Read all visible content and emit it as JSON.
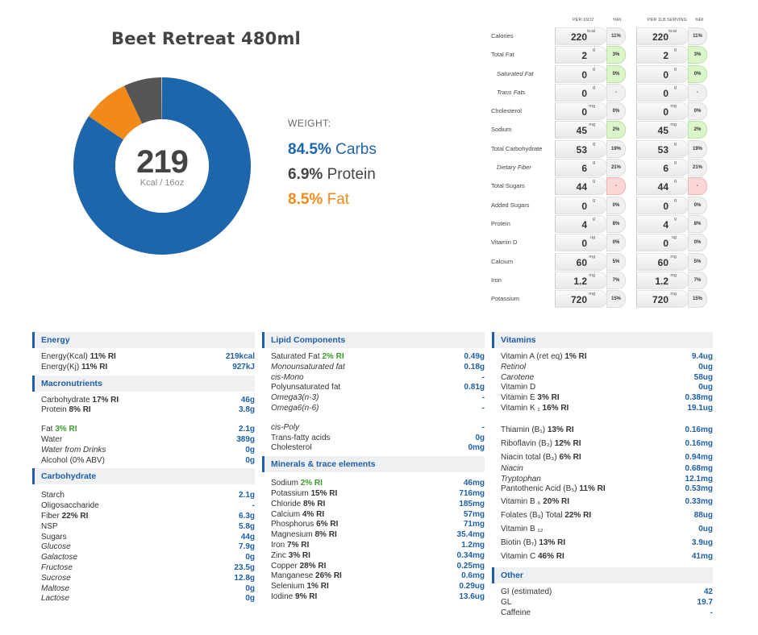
{
  "title": "Beet Retreat 480ml",
  "summary": {
    "kcal": "219",
    "kcal_unit": "Kcal / 16oz",
    "weight_label": "WEIGHT:",
    "carbs_pct": "84.5%",
    "carbs_label": "Carbs",
    "protein_pct": "6.9%",
    "protein_label": "Protein",
    "fat_pct": "8.5%",
    "fat_label": "Fat",
    "colors": {
      "carbs": "#1e66ab",
      "protein": "#555555",
      "fat": "#f28a1a"
    }
  },
  "donut": {
    "segments": [
      {
        "name": "carbs",
        "fraction": 0.845,
        "color": "#1e66ab"
      },
      {
        "name": "fat",
        "fraction": 0.085,
        "color": "#f28a1a"
      },
      {
        "name": "protein",
        "fraction": 0.069,
        "color": "#555555"
      }
    ]
  },
  "nutrition_table": {
    "header_per16": "PER 16OZ",
    "header_ri": "%RI",
    "header_per1lb": "PER 1LB SERVING",
    "header_ri2": "%RI",
    "rows": [
      {
        "label": "Calories",
        "sub": false,
        "v1": "220",
        "u1": "kcal",
        "ri1": "11%",
        "v2": "220",
        "u2": "kcal",
        "ri2": "11%",
        "state": "none"
      },
      {
        "label": "Total Fat",
        "sub": false,
        "v1": "2",
        "u1": "g",
        "ri1": "3%",
        "v2": "2",
        "u2": "g",
        "ri2": "3%",
        "state": "green"
      },
      {
        "label": "Saturated Fat",
        "sub": true,
        "v1": "0",
        "u1": "g",
        "ri1": "0%",
        "v2": "0",
        "u2": "g",
        "ri2": "0%",
        "state": "green"
      },
      {
        "label": "Trans Fats",
        "sub": true,
        "v1": "0",
        "u1": "g",
        "ri1": "-",
        "v2": "0",
        "u2": "g",
        "ri2": "-",
        "state": "none"
      },
      {
        "label": "Cholesterol",
        "sub": false,
        "v1": "0",
        "u1": "mg",
        "ri1": "0%",
        "v2": "0",
        "u2": "mg",
        "ri2": "0%",
        "state": "none"
      },
      {
        "label": "Sodium",
        "sub": false,
        "v1": "45",
        "u1": "mg",
        "ri1": "2%",
        "v2": "45",
        "u2": "mg",
        "ri2": "2%",
        "state": "green"
      },
      {
        "label": "Total Carbohydrate",
        "sub": false,
        "v1": "53",
        "u1": "g",
        "ri1": "19%",
        "v2": "53",
        "u2": "g",
        "ri2": "19%",
        "state": "none"
      },
      {
        "label": "Dietary Fiber",
        "sub": true,
        "v1": "6",
        "u1": "g",
        "ri1": "21%",
        "v2": "6",
        "u2": "g",
        "ri2": "21%",
        "state": "none"
      },
      {
        "label": "Total Sugars",
        "sub": false,
        "v1": "44",
        "u1": "g",
        "ri1": "-",
        "v2": "44",
        "u2": "g",
        "ri2": "-",
        "state": "red"
      },
      {
        "label": "Added Sugars",
        "sub": false,
        "v1": "0",
        "u1": "g",
        "ri1": "0%",
        "v2": "0",
        "u2": "g",
        "ri2": "0%",
        "state": "none"
      },
      {
        "label": "Protein",
        "sub": false,
        "v1": "4",
        "u1": "g",
        "ri1": "8%",
        "v2": "4",
        "u2": "g",
        "ri2": "8%",
        "state": "none"
      },
      {
        "label": "Vitamin D",
        "sub": false,
        "v1": "0",
        "u1": "ug",
        "ri1": "0%",
        "v2": "0",
        "u2": "ug",
        "ri2": "0%",
        "state": "none"
      },
      {
        "label": "Calcium",
        "sub": false,
        "v1": "60",
        "u1": "mg",
        "ri1": "5%",
        "v2": "60",
        "u2": "mg",
        "ri2": "5%",
        "state": "none"
      },
      {
        "label": "Iron",
        "sub": false,
        "v1": "1.2",
        "u1": "mg",
        "ri1": "7%",
        "v2": "1.2",
        "u2": "mg",
        "ri2": "7%",
        "state": "none"
      },
      {
        "label": "Potassium",
        "sub": false,
        "v1": "720",
        "u1": "mg",
        "ri1": "15%",
        "v2": "720",
        "u2": "mg",
        "ri2": "15%",
        "state": "none"
      }
    ]
  },
  "panels": [
    {
      "left": 40,
      "width": 276,
      "blocks": [
        {
          "type": "header",
          "text": "Energy"
        },
        {
          "type": "gap",
          "h": 5
        },
        {
          "type": "row",
          "name": "Energy(Kcal)",
          "ri": "11% RI",
          "value": "219kcal"
        },
        {
          "type": "row",
          "name": "Energy(Kj)",
          "ri": "11% RI",
          "value": "927kJ"
        },
        {
          "type": "gap",
          "h": 3
        },
        {
          "type": "header",
          "text": "Macronutrients"
        },
        {
          "type": "gap",
          "h": 5
        },
        {
          "type": "row",
          "name": "Carbohydrate",
          "ri": "17% RI",
          "value": "46g"
        },
        {
          "type": "row",
          "name": "Protein",
          "ri": "8% RI",
          "value": "3.8g"
        },
        {
          "type": "gap",
          "h": 11
        },
        {
          "type": "row",
          "name": "Fat",
          "ri": "3% RI",
          "ri_green": true,
          "value": "2.1g"
        },
        {
          "type": "row",
          "name": "Water",
          "value": "389g"
        },
        {
          "type": "row",
          "name": "Water from Drinks",
          "italic": true,
          "value": "0g"
        },
        {
          "type": "row",
          "name": "Alcohol (0% ABV)",
          "value": "0g"
        },
        {
          "type": "gap",
          "h": 3
        },
        {
          "type": "header",
          "text": "Carbohydrate"
        },
        {
          "type": "gap",
          "h": 8
        },
        {
          "type": "row",
          "name": "Starch",
          "value": "2.1g"
        },
        {
          "type": "row",
          "name": "Oligosaccharide",
          "value": "-"
        },
        {
          "type": "row",
          "name": "Fiber",
          "ri": "22% RI",
          "value": "6.3g"
        },
        {
          "type": "row",
          "name": "NSP",
          "value": "5.8g"
        },
        {
          "type": "row",
          "name": "Sugars",
          "value": "44g"
        },
        {
          "type": "row",
          "name": "Glucose",
          "italic": true,
          "value": "7.9g"
        },
        {
          "type": "row",
          "name": "Galactose",
          "italic": true,
          "value": "0g"
        },
        {
          "type": "row",
          "name": "Fructose",
          "italic": true,
          "value": "23.5g"
        },
        {
          "type": "row",
          "name": "Sucrose",
          "italic": true,
          "value": "12.8g"
        },
        {
          "type": "row",
          "name": "Maltose",
          "italic": true,
          "value": "0g"
        },
        {
          "type": "row",
          "name": "Lactose",
          "italic": true,
          "value": "0g"
        }
      ]
    },
    {
      "left": 325,
      "width": 276,
      "blocks": [
        {
          "type": "header",
          "text": "Lipid Components"
        },
        {
          "type": "gap",
          "h": 5
        },
        {
          "type": "row",
          "name": "Saturated Fat",
          "ri": "2% RI",
          "ri_green": true,
          "value": "0.49g"
        },
        {
          "type": "row",
          "name": "Monounsaturated fat",
          "italic": true,
          "value": "0.18g"
        },
        {
          "type": "row",
          "name": "cis-Mono",
          "italic": true,
          "value": "-"
        },
        {
          "type": "row",
          "name": "Polyunsaturated fat",
          "value": "0.81g"
        },
        {
          "type": "row",
          "name": "Omega3(n-3)",
          "italic": true,
          "value": "-"
        },
        {
          "type": "row",
          "name": "Omega6(n-6)",
          "italic": true,
          "value": "-"
        },
        {
          "type": "gap",
          "h": 11
        },
        {
          "type": "row",
          "name": "cis-Poly",
          "italic": true,
          "value": "-"
        },
        {
          "type": "row",
          "name": "Trans-fatty acids",
          "value": "0g"
        },
        {
          "type": "row",
          "name": "Cholesterol",
          "value": "0mg"
        },
        {
          "type": "gap",
          "h": 3
        },
        {
          "type": "header",
          "text": "Minerals & trace elements"
        },
        {
          "type": "gap",
          "h": 8
        },
        {
          "type": "row",
          "name": "Sodium",
          "ri": "2% RI",
          "ri_green": true,
          "value": "46mg"
        },
        {
          "type": "row",
          "name": "Potassium",
          "ri": "15% RI",
          "value": "716mg"
        },
        {
          "type": "row",
          "name": "Chloride",
          "ri": "8% RI",
          "value": "185mg"
        },
        {
          "type": "row",
          "name": "Calcium",
          "ri": "4% RI",
          "value": "57mg"
        },
        {
          "type": "row",
          "name": "Phosphorus",
          "ri": "6% RI",
          "value": "71mg"
        },
        {
          "type": "row",
          "name": "Magnesium",
          "ri": "8% RI",
          "value": "35.4mg"
        },
        {
          "type": "row",
          "name": "Iron",
          "ri": "7% RI",
          "value": "1.2mg"
        },
        {
          "type": "row",
          "name": "Zinc",
          "ri": "3% RI",
          "value": "0.34mg"
        },
        {
          "type": "row",
          "name": "Copper",
          "ri": "28% RI",
          "value": "0.25mg"
        },
        {
          "type": "row",
          "name": "Manganese",
          "ri": "26% RI",
          "value": "0.6mg"
        },
        {
          "type": "row",
          "name": "Selenium",
          "ri": "1% RI",
          "value": "0.29ug"
        },
        {
          "type": "row",
          "name": "Iodine",
          "ri": "9% RI",
          "value": "13.6ug"
        }
      ]
    },
    {
      "left": 610,
      "width": 274,
      "blocks": [
        {
          "type": "header",
          "text": "Vitamins"
        },
        {
          "type": "gap",
          "h": 5
        },
        {
          "type": "row",
          "name": "Vitamin A (ret eq)",
          "ri": "1% RI",
          "value": "9.4ug"
        },
        {
          "type": "row",
          "name": "Retinol",
          "italic": true,
          "value": "0ug"
        },
        {
          "type": "row",
          "name": "Carotene",
          "italic": true,
          "value": "58ug"
        },
        {
          "type": "row",
          "name": "Vitamin D",
          "value": "0ug"
        },
        {
          "type": "row",
          "name": "Vitamin E",
          "ri": "3% RI",
          "value": "0.38mg"
        },
        {
          "type": "row",
          "name": "Vitamin K ₁",
          "ri": "16% RI",
          "value": "19.1ug"
        },
        {
          "type": "gap",
          "h": 11
        },
        {
          "type": "row",
          "name": "Thiamin (B₁)",
          "ri": "13% RI",
          "value": "0.16mg",
          "h": 17
        },
        {
          "type": "row",
          "name": "Riboflavin (B₂)",
          "ri": "12% RI",
          "value": "0.16mg",
          "h": 17
        },
        {
          "type": "row",
          "name": "Niacin total (B₃)",
          "ri": "6% RI",
          "value": "0.94mg",
          "h": 17
        },
        {
          "type": "row",
          "name": "Niacin",
          "italic": true,
          "value": "0.68mg"
        },
        {
          "type": "row",
          "name": "Tryptophan",
          "italic": true,
          "value": "12.1mg"
        },
        {
          "type": "row",
          "name": "Pantothenic Acid (B₅)",
          "ri": "11% RI",
          "value": "0.53mg"
        },
        {
          "type": "row",
          "name": "Vitamin B ₆",
          "ri": "20% RI",
          "value": "0.33mg",
          "h": 17
        },
        {
          "type": "row",
          "name": "Folates (B₉) Total",
          "ri": "22% RI",
          "value": "88ug",
          "h": 17
        },
        {
          "type": "row",
          "name": "Vitamin B ₁₂",
          "value": "0ug",
          "h": 17
        },
        {
          "type": "row",
          "name": "Biotin (B₇)",
          "ri": "13% RI",
          "value": "3.9ug",
          "h": 17
        },
        {
          "type": "row",
          "name": "Vitamin C",
          "ri": "46% RI",
          "value": "41mg",
          "h": 17
        },
        {
          "type": "gap",
          "h": 5
        },
        {
          "type": "header",
          "text": "Other"
        },
        {
          "type": "gap",
          "h": 5
        },
        {
          "type": "row",
          "name": "GI (estimated)",
          "value": "42"
        },
        {
          "type": "row",
          "name": "GL",
          "value": "19.7"
        },
        {
          "type": "row",
          "name": "Caffeine",
          "value": "-"
        }
      ]
    }
  ]
}
